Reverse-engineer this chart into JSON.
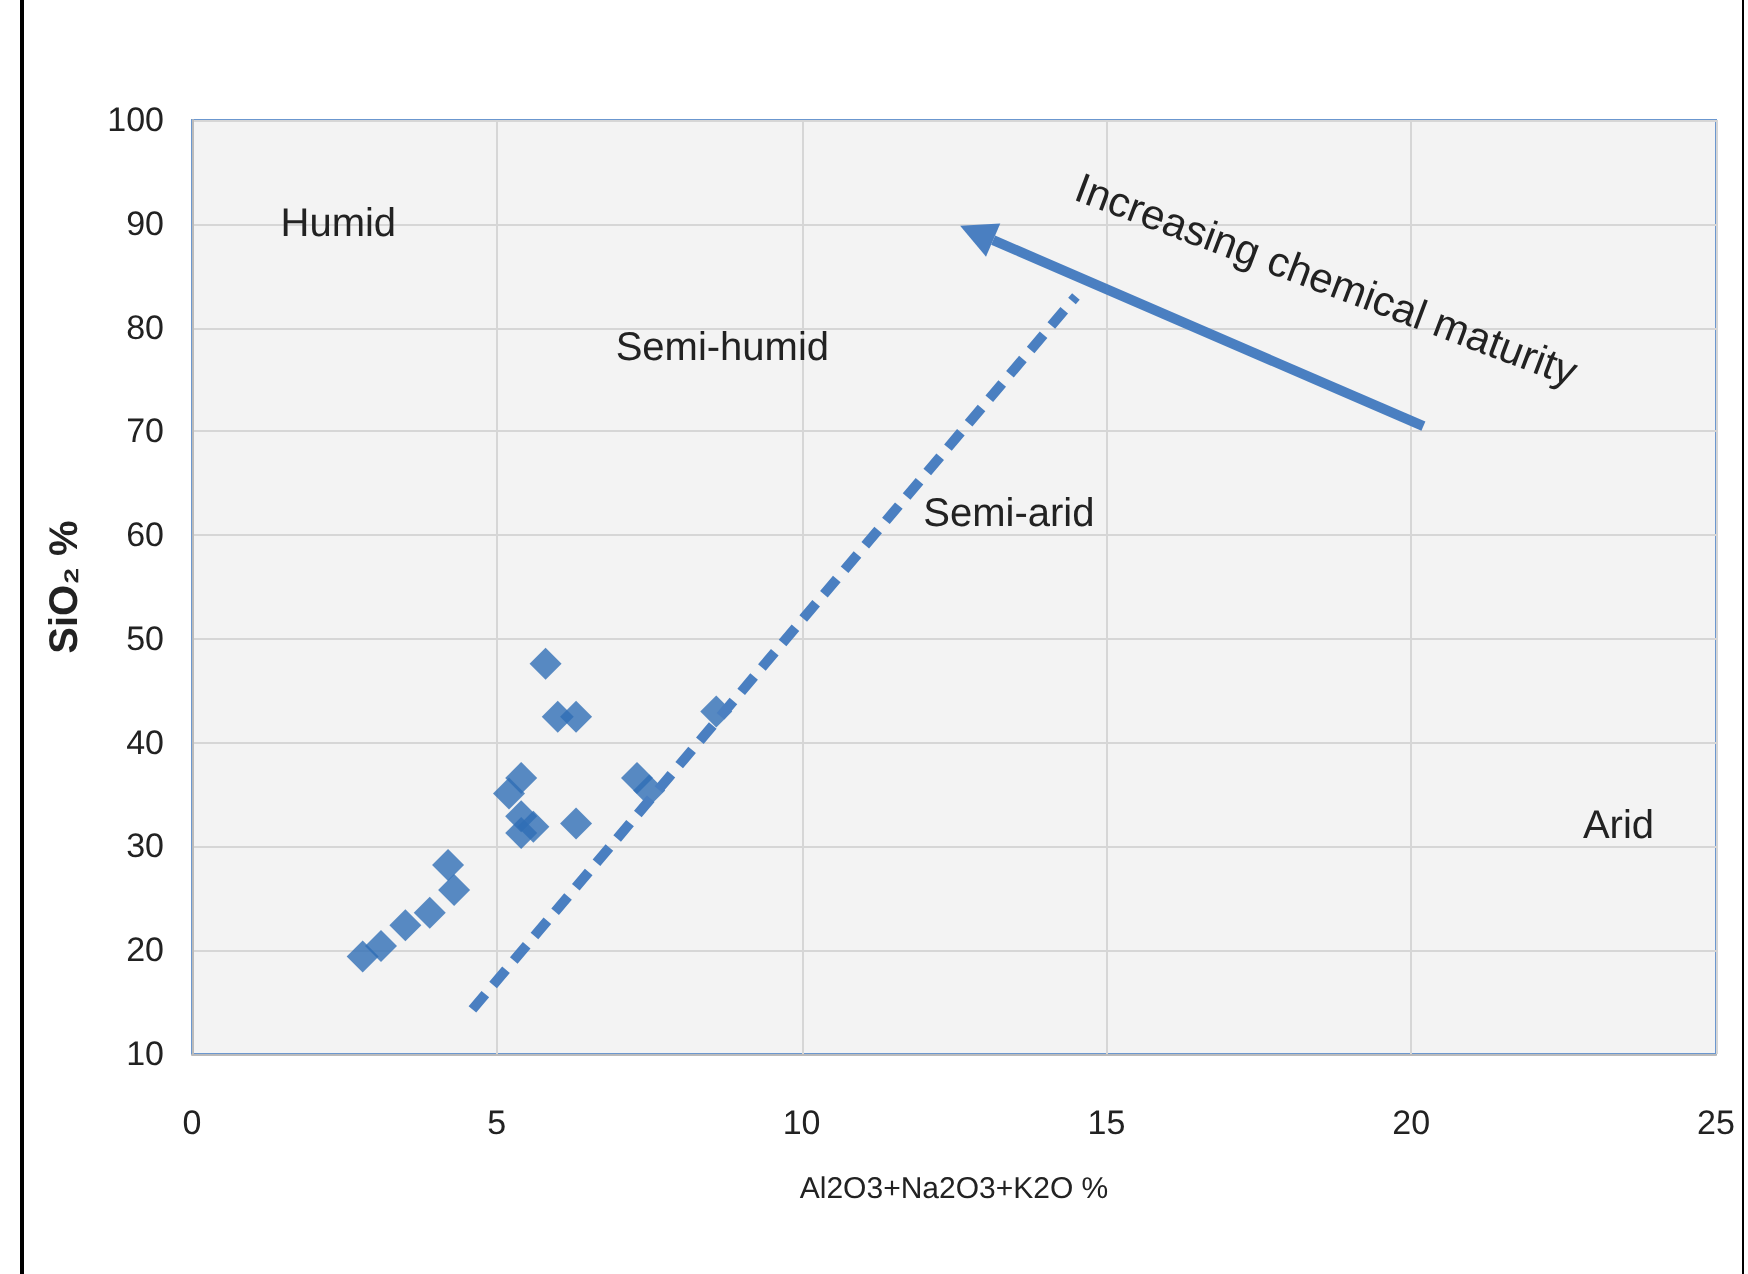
{
  "chart_data": {
    "type": "scatter",
    "xlabel": "Al2O3+Na2O3+K2O %",
    "ylabel": "SiO₂ %",
    "xlim": [
      0,
      25
    ],
    "xticks": [
      0,
      5,
      10,
      15,
      20,
      25
    ],
    "ylim": [
      10,
      100
    ],
    "yticks": [
      10,
      20,
      30,
      40,
      50,
      60,
      70,
      80,
      90,
      100
    ],
    "grid": true,
    "marker": "diamond",
    "series": [
      {
        "type": "scatter",
        "color": "#2f6eb5",
        "x": [
          2.8,
          3.1,
          3.5,
          3.9,
          4.2,
          4.3,
          5.8,
          6.0,
          6.3,
          5.4,
          5.2,
          5.4,
          5.4,
          5.6,
          6.3,
          7.3,
          7.5,
          8.6
        ],
        "values": [
          19.4,
          20.4,
          22.4,
          23.6,
          28.2,
          25.8,
          47.6,
          42.5,
          42.5,
          36.6,
          35.1,
          32.9,
          31.3,
          31.9,
          32.2,
          36.6,
          35.4,
          43
        ]
      },
      {
        "type": "line",
        "color": "#4a7fc1",
        "line_style": "dashed",
        "marker": "none",
        "x": [
          4.6,
          14.5
        ],
        "values": [
          14.3,
          83.0
        ]
      }
    ],
    "annotations": [
      "Humid",
      "Semi-humid",
      "Semi-arid",
      "Arid",
      "Increasing chemical maturity"
    ]
  }
}
